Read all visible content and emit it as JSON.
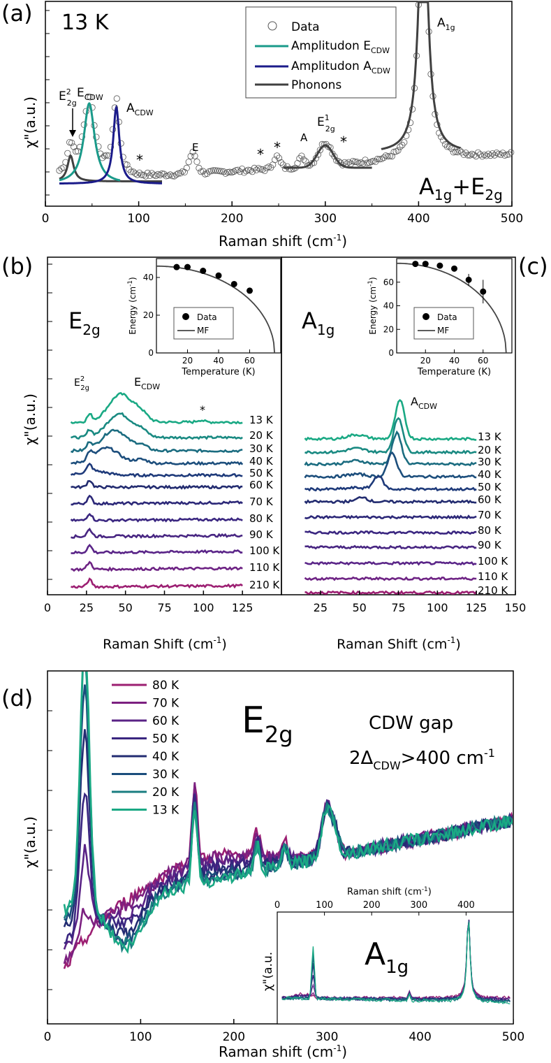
{
  "chart_data": [
    {
      "panel": "a",
      "type": "scatter",
      "panel_label": "(a)",
      "temp_label": "13 K",
      "xlabel": "Raman shift (cm-1)",
      "ylabel": "χ\"(a.u.)",
      "xlim": [
        0,
        500
      ],
      "xticks": [
        "0",
        "100",
        "200",
        "300",
        "400",
        "500"
      ],
      "symmetry": "A1g+E2g",
      "legend": {
        "placement": "top-center",
        "entries": [
          "Data",
          "Amplitudon ECDW",
          "Amplitudon ACDW",
          "Phonons"
        ]
      },
      "colors": {
        "data": "#555555",
        "amplitudon_E": "#1a9a8a",
        "amplitudon_A": "#1b1b8a",
        "phonons": "#404040"
      },
      "annotations": [
        "E2g2",
        "ECDW",
        "ACDW",
        "E",
        "A",
        "E2g1",
        "A1g",
        "*",
        "*",
        "*",
        "*"
      ],
      "amplitudon_E": {
        "center": 47,
        "width": 7
      },
      "amplitudon_A": {
        "center": 76,
        "width": 4
      },
      "peaks": [
        {
          "label": "E2g2",
          "x": 27
        },
        {
          "label": "ECDW",
          "x": 47
        },
        {
          "label": "ACDW",
          "x": 76
        },
        {
          "label": "E",
          "x": 158
        },
        {
          "label": "A",
          "x": 275
        },
        {
          "label": "E2g1",
          "x": 300
        },
        {
          "label": "A1g",
          "x": 405
        }
      ]
    },
    {
      "panel": "b",
      "type": "line",
      "panel_label": "(b)",
      "symmetry": "E2g",
      "xlabel": "Raman Shift (cm-1)",
      "ylabel": "χ\"(a.u.)",
      "xlim": [
        0,
        150
      ],
      "xticks": [
        "0",
        "25",
        "50",
        "75",
        "100",
        "125"
      ],
      "annotations": [
        "E2g2",
        "ECDW",
        "*"
      ],
      "series": [
        {
          "name": "13 K",
          "color": "#1aa984",
          "cdw_peak": 47,
          "cdw_amp": 1.0
        },
        {
          "name": "20 K",
          "color": "#1a8a82",
          "cdw_peak": 46,
          "cdw_amp": 0.85
        },
        {
          "name": "30 K",
          "color": "#1b6c80",
          "cdw_peak": 43,
          "cdw_amp": 0.75
        },
        {
          "name": "40 K",
          "color": "#1c4e7c",
          "cdw_peak": 38,
          "cdw_amp": 0.55
        },
        {
          "name": "50 K",
          "color": "#1e3a7a",
          "cdw_peak": 30,
          "cdw_amp": 0.15
        },
        {
          "name": "60 K",
          "color": "#232c70",
          "cdw_peak": 28,
          "cdw_amp": 0.0
        },
        {
          "name": "70 K",
          "color": "#2c2878",
          "cdw_peak": 27,
          "cdw_amp": 0.0
        },
        {
          "name": "80 K",
          "color": "#3a2680",
          "cdw_peak": 27,
          "cdw_amp": 0.0
        },
        {
          "name": "90 K",
          "color": "#482682",
          "cdw_peak": 27,
          "cdw_amp": 0.0
        },
        {
          "name": "100 K",
          "color": "#5a2588",
          "cdw_peak": 27,
          "cdw_amp": 0.0
        },
        {
          "name": "110 K",
          "color": "#6e2384",
          "cdw_peak": 27,
          "cdw_amp": 0.0
        },
        {
          "name": "210 K",
          "color": "#9c1f72",
          "cdw_peak": 27,
          "cdw_amp": 0.0
        }
      ],
      "inset": {
        "xlabel": "Temperature (K)",
        "ylabel": "Energy (cm-1)",
        "xticks": [
          "20",
          "40",
          "60"
        ],
        "yticks": [
          "0",
          "20",
          "40"
        ],
        "xlim": [
          0,
          80
        ],
        "ylim": [
          0,
          50
        ],
        "legend": [
          "Data",
          "MF"
        ],
        "points": [
          [
            13,
            45.5
          ],
          [
            20,
            45.5
          ],
          [
            30,
            43.5
          ],
          [
            40,
            41
          ],
          [
            50,
            36.5
          ],
          [
            60,
            33
          ]
        ],
        "mf_e0": 46,
        "mf_tc": 76
      }
    },
    {
      "panel": "c",
      "type": "line",
      "panel_label": "(c)",
      "symmetry": "A1g",
      "xlabel": "Raman Shift (cm-1)",
      "ylabel": "",
      "xlim": [
        0,
        150
      ],
      "xticks": [
        "25",
        "50",
        "75",
        "100",
        "125",
        "150"
      ],
      "annotations": [
        "ACDW"
      ],
      "series": [
        {
          "name": "13 K",
          "color": "#1aa984",
          "cdw_peak": 76,
          "cdw_amp": 1.0
        },
        {
          "name": "20 K",
          "color": "#1a8a82",
          "cdw_peak": 75,
          "cdw_amp": 0.9
        },
        {
          "name": "30 K",
          "color": "#1b6c80",
          "cdw_peak": 74,
          "cdw_amp": 0.8
        },
        {
          "name": "40 K",
          "color": "#1c4e7c",
          "cdw_peak": 71,
          "cdw_amp": 0.6
        },
        {
          "name": "50 K",
          "color": "#1e3a7a",
          "cdw_peak": 62,
          "cdw_amp": 0.35
        },
        {
          "name": "60 K",
          "color": "#232c70",
          "cdw_peak": 52,
          "cdw_amp": 0.12
        },
        {
          "name": "70 K",
          "color": "#2c2878",
          "cdw_peak": 50,
          "cdw_amp": 0.0
        },
        {
          "name": "80 K",
          "color": "#3a2680",
          "cdw_peak": 50,
          "cdw_amp": 0.0
        },
        {
          "name": "90 K",
          "color": "#482682",
          "cdw_peak": 50,
          "cdw_amp": 0.0
        },
        {
          "name": "100 K",
          "color": "#5a2588",
          "cdw_peak": 50,
          "cdw_amp": 0.0
        },
        {
          "name": "110 K",
          "color": "#6e2384",
          "cdw_peak": 50,
          "cdw_amp": 0.0
        },
        {
          "name": "210 K",
          "color": "#9c1f72",
          "cdw_peak": 50,
          "cdw_amp": 0.0
        }
      ],
      "inset": {
        "xlabel": "Temperature (K)",
        "ylabel": "Energy (cm-1)",
        "xticks": [
          "20",
          "40",
          "60"
        ],
        "yticks": [
          "0",
          "20",
          "40",
          "60"
        ],
        "xlim": [
          0,
          80
        ],
        "ylim": [
          0,
          80
        ],
        "legend": [
          "Data",
          "MF"
        ],
        "points": [
          [
            13,
            75.5
          ],
          [
            20,
            75.5
          ],
          [
            30,
            74
          ],
          [
            40,
            71.5
          ],
          [
            50,
            62
          ],
          [
            60,
            52
          ]
        ],
        "errors": [
          0,
          0,
          0,
          0,
          5,
          10
        ],
        "mf_e0": 76,
        "mf_tc": 76
      }
    },
    {
      "panel": "d",
      "type": "line",
      "panel_label": "(d)",
      "symmetry": "E2g",
      "gap_title": "CDW gap",
      "gap_text": "2ΔCDW>400 cm-1",
      "xlabel": "Raman shift (cm-1)",
      "ylabel": "χ\"(a.u.)",
      "xlim": [
        0,
        500
      ],
      "xticks": [
        "0",
        "100",
        "200",
        "300",
        "400",
        "500"
      ],
      "series": [
        {
          "name": "80 K",
          "color": "#9c1f72",
          "cdw": 0.0
        },
        {
          "name": "70 K",
          "color": "#7c2080",
          "cdw": 0.1
        },
        {
          "name": "60 K",
          "color": "#5a2386",
          "cdw": 0.3
        },
        {
          "name": "50 K",
          "color": "#3a2680",
          "cdw": 0.5
        },
        {
          "name": "40 K",
          "color": "#232c72",
          "cdw": 0.7
        },
        {
          "name": "30 K",
          "color": "#1b4d7c",
          "cdw": 0.85
        },
        {
          "name": "20 K",
          "color": "#1a7d80",
          "cdw": 0.95
        },
        {
          "name": "13 K",
          "color": "#1aa984",
          "cdw": 1.0
        }
      ],
      "inset": {
        "symmetry": "A1g",
        "xlabel": "Raman shift (cm-1)",
        "ylabel": "χ\"(a.u.",
        "xlim": [
          0,
          500
        ],
        "xticks": [
          "0",
          "100",
          "200",
          "300",
          "400"
        ]
      }
    }
  ]
}
